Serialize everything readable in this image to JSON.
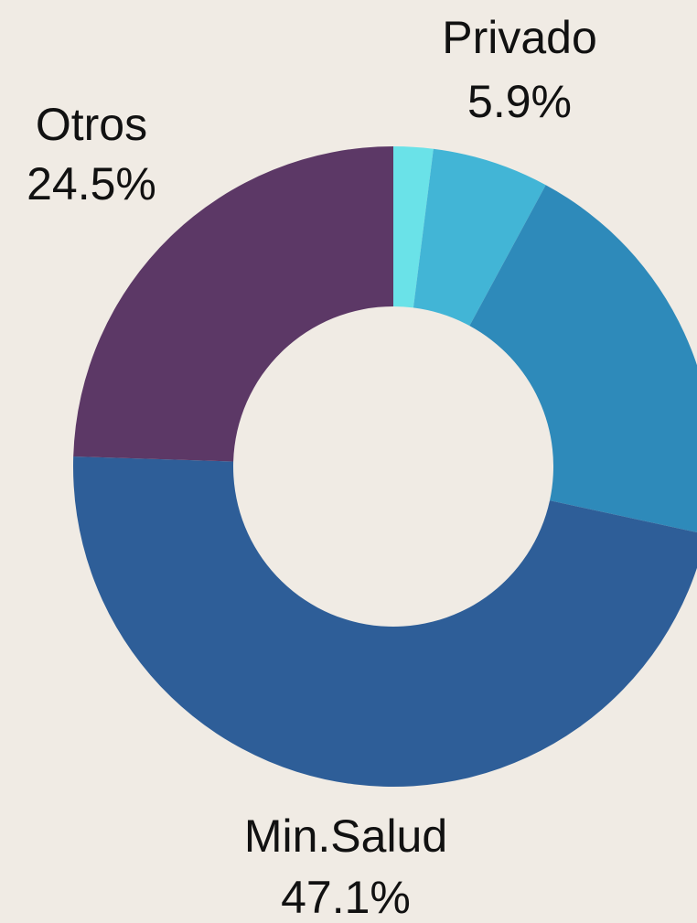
{
  "chart_data": {
    "type": "donut",
    "categories": [
      null,
      "Privado",
      null,
      "Min.Salud",
      "Otros"
    ],
    "values": [
      2,
      5.9,
      20.5,
      47.1,
      24.5
    ],
    "value_labels": [
      null,
      "5.9%",
      null,
      "47.1%",
      "24.5%"
    ],
    "colors": [
      "#6ae2e8",
      "#42b5d6",
      "#2e8aba",
      "#2e5e98",
      "#5c3866"
    ]
  }
}
